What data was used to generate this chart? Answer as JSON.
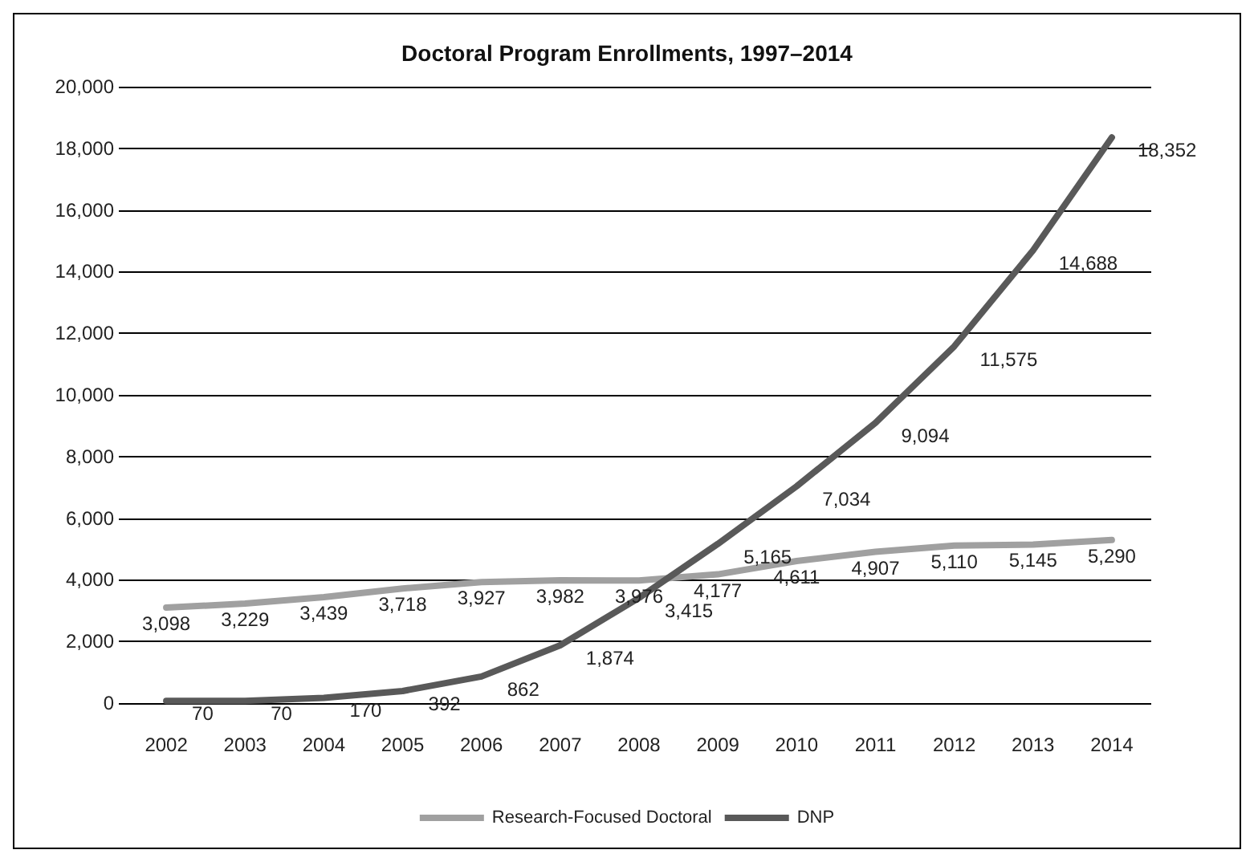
{
  "chart_data": {
    "type": "line",
    "title": "Doctoral Program Enrollments, 1997–2014",
    "categories": [
      "2002",
      "2003",
      "2004",
      "2005",
      "2006",
      "2007",
      "2008",
      "2009",
      "2010",
      "2011",
      "2012",
      "2013",
      "2014"
    ],
    "series": [
      {
        "name": "Research-Focused Doctoral",
        "color": "#a0a0a0",
        "values": [
          3098,
          3229,
          3439,
          3718,
          3927,
          3982,
          3976,
          4177,
          4611,
          4907,
          5110,
          5145,
          5290
        ],
        "value_labels": [
          "3,098",
          "3,229",
          "3,439",
          "3,718",
          "3,927",
          "3,982",
          "3,976",
          "4,177",
          "4,611",
          "4,907",
          "5,110",
          "5,145",
          "5,290"
        ]
      },
      {
        "name": "DNP",
        "color": "#595959",
        "values": [
          70,
          70,
          170,
          392,
          862,
          1874,
          3415,
          5165,
          7034,
          9094,
          11575,
          14688,
          18352
        ],
        "value_labels": [
          "70",
          "70",
          "170",
          "392",
          "862",
          "1,874",
          "3,415",
          "5,165",
          "7,034",
          "9,094",
          "11,575",
          "14,688",
          "18,352"
        ]
      }
    ],
    "ylim": [
      0,
      20000
    ],
    "yticks": [
      0,
      {
        "value": 2000,
        "label": "2,000"
      },
      {
        "value": 4000,
        "label": "4,000"
      },
      {
        "value": 6000,
        "label": "6,000"
      },
      {
        "value": 8000,
        "label": "8,000"
      },
      {
        "value": 10000,
        "label": "10,000"
      },
      {
        "value": 12000,
        "label": "12,000"
      },
      {
        "value": 14000,
        "label": "14,000"
      },
      {
        "value": 16000,
        "label": "16,000"
      },
      {
        "value": 18000,
        "label": "18,000"
      },
      {
        "value": 20000,
        "label": "20,000"
      }
    ],
    "grid": "y",
    "legend": "bottom",
    "marker": "none",
    "line_style": "solid"
  }
}
